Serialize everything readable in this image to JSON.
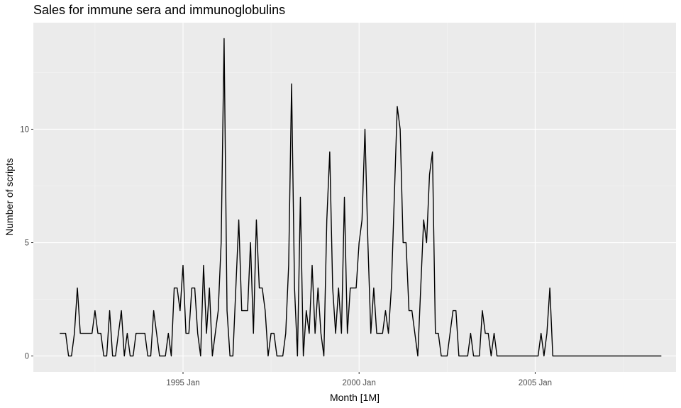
{
  "chart_data": {
    "type": "line",
    "title": "Sales for immune sera and immunoglobulins",
    "xlabel": "Month [1M]",
    "ylabel": "Number of scripts",
    "x_start": "1991 Jul",
    "x_frequency": "monthly",
    "x_ticks": [
      {
        "label": "1995 Jan",
        "month_index": 42
      },
      {
        "label": "2000 Jan",
        "month_index": 102
      },
      {
        "label": "2005 Jan",
        "month_index": 162
      }
    ],
    "y_ticks": [
      0,
      5,
      10
    ],
    "ylim": [
      -0.7,
      14.7
    ],
    "xlim_months": [
      -9,
      210
    ],
    "grid": true,
    "colors": {
      "panel_background": "#ebebeb",
      "grid_major": "#ffffff",
      "grid_minor": "#f5f5f5",
      "line": "#000000",
      "tick": "#333333"
    },
    "series": [
      {
        "name": "Scripts",
        "values": [
          1,
          1,
          1,
          0,
          0,
          1,
          3,
          1,
          1,
          1,
          1,
          1,
          2,
          1,
          1,
          0,
          0,
          2,
          0,
          0,
          1,
          2,
          0,
          1,
          0,
          0,
          1,
          1,
          1,
          1,
          0,
          0,
          2,
          1,
          0,
          0,
          0,
          1,
          0,
          3,
          3,
          2,
          4,
          1,
          1,
          3,
          3,
          1,
          0,
          4,
          1,
          3,
          0,
          1,
          2,
          5,
          14,
          2,
          0,
          0,
          3,
          6,
          2,
          2,
          2,
          5,
          1,
          6,
          3,
          3,
          2,
          0,
          1,
          1,
          0,
          0,
          0,
          1,
          4,
          12,
          3,
          0,
          7,
          0,
          2,
          1,
          4,
          1,
          3,
          1,
          0,
          6,
          9,
          3,
          1,
          3,
          1,
          7,
          1,
          3,
          3,
          3,
          5,
          6,
          10,
          5,
          1,
          3,
          1,
          1,
          1,
          2,
          1,
          3,
          7,
          11,
          10,
          5,
          5,
          2,
          2,
          1,
          0,
          3,
          6,
          5,
          8,
          9,
          1,
          1,
          0,
          0,
          0,
          1,
          2,
          2,
          0,
          0,
          0,
          0,
          1,
          0,
          0,
          0,
          2,
          1,
          1,
          0,
          1,
          0,
          0,
          0,
          0,
          0,
          0,
          0,
          0,
          0,
          0,
          0,
          0,
          0,
          0,
          0,
          1,
          0,
          1,
          3,
          0,
          0,
          0,
          0,
          0,
          0,
          0,
          0,
          0,
          0,
          0,
          0,
          0,
          0,
          0,
          0,
          0,
          0,
          0,
          0,
          0,
          0,
          0,
          0,
          0,
          0,
          0,
          0,
          0,
          0,
          0,
          0,
          0,
          0,
          0,
          0,
          0,
          0
        ]
      }
    ]
  }
}
